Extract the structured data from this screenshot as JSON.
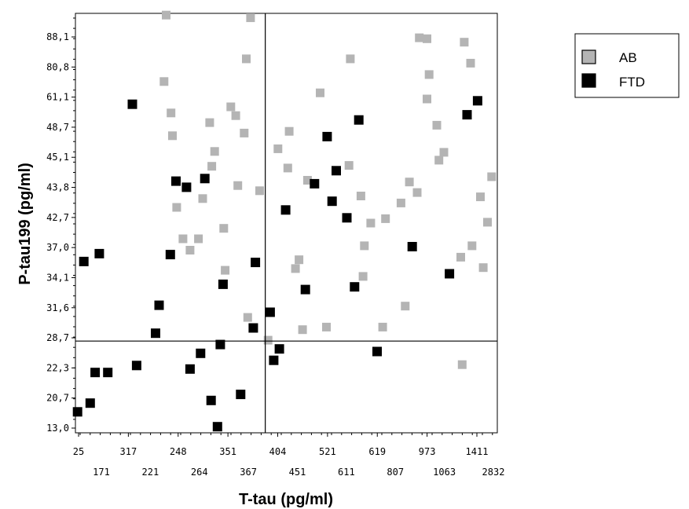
{
  "chart_data": {
    "type": "scatter",
    "xlabel": "T-tau (pg/ml)",
    "ylabel": "P-tau199 (pg/ml)",
    "x_ticks_top": [
      "25",
      "317",
      "248",
      "351",
      "404",
      "521",
      "619",
      "973",
      "1411"
    ],
    "x_ticks_bottom": [
      "171",
      "221",
      "264",
      "367",
      "451",
      "611",
      "807",
      "1063",
      "2832"
    ],
    "y_ticks": [
      "88,1",
      "80,8",
      "61,1",
      "48,7",
      "45,1",
      "43,8",
      "42,7",
      "37,0",
      "34,1",
      "31,6",
      "28,7",
      "22,3",
      "20,7",
      "13,0"
    ],
    "x_cutoff_rank": 27,
    "y_cutoff_rank": 10.5,
    "x_range_rank": [
      0,
      48
    ],
    "y_range_rank": [
      0,
      48
    ],
    "grid": false,
    "legend_position": "top-right",
    "series": [
      {
        "name": "AB",
        "color": "#b4b4b4",
        "points": [
          [
            12.9,
            47.8
          ],
          [
            12.6,
            40.2
          ],
          [
            13.6,
            36.6
          ],
          [
            13.8,
            34
          ],
          [
            14.4,
            25.8
          ],
          [
            15.3,
            22.2
          ],
          [
            16.3,
            20.9
          ],
          [
            17.5,
            22.2
          ],
          [
            18.1,
            26.8
          ],
          [
            19.4,
            30.5
          ],
          [
            19.1,
            35.5
          ],
          [
            19.8,
            32.2
          ],
          [
            21.3,
            18.6
          ],
          [
            21.1,
            23.4
          ],
          [
            22.1,
            37.3
          ],
          [
            22.8,
            36.3
          ],
          [
            23.1,
            28.3
          ],
          [
            24,
            34.3
          ],
          [
            24.5,
            13.2
          ],
          [
            24.9,
            47.5
          ],
          [
            24.3,
            42.8
          ],
          [
            26.2,
            27.7
          ],
          [
            27.4,
            10.6
          ],
          [
            28.8,
            32.5
          ],
          [
            30.4,
            34.5
          ],
          [
            30.2,
            30.3
          ],
          [
            31.8,
            19.8
          ],
          [
            31.3,
            18.8
          ],
          [
            32.3,
            11.8
          ],
          [
            33,
            28.9
          ],
          [
            34.8,
            38.9
          ],
          [
            35.7,
            12.1
          ],
          [
            38.9,
            30.6
          ],
          [
            39.1,
            42.8
          ],
          [
            41.1,
            21.4
          ],
          [
            40.6,
            27.1
          ],
          [
            40.9,
            17.9
          ],
          [
            42,
            24
          ],
          [
            43.7,
            12.1
          ],
          [
            44.1,
            24.5
          ],
          [
            46.3,
            26.3
          ],
          [
            47.5,
            28.7
          ],
          [
            46.9,
            14.5
          ],
          [
            48.6,
            27.5
          ],
          [
            48.9,
            45.2
          ],
          [
            50,
            45.1
          ],
          [
            50.3,
            41
          ],
          [
            50,
            38.2
          ],
          [
            51.7,
            31.2
          ],
          [
            51.4,
            35.2
          ],
          [
            52.4,
            32.1
          ],
          [
            54.8,
            20.1
          ],
          [
            55,
            7.8
          ],
          [
            55.3,
            44.7
          ],
          [
            56.4,
            21.4
          ],
          [
            56.2,
            42.3
          ],
          [
            57.6,
            27
          ],
          [
            58,
            18.9
          ],
          [
            58.6,
            24.1
          ],
          [
            59.2,
            29.3
          ]
        ]
      },
      {
        "name": "FTD",
        "color": "#000000",
        "points": [
          [
            0.3,
            2.4
          ],
          [
            1.2,
            19.6
          ],
          [
            2.1,
            3.4
          ],
          [
            2.8,
            6.9
          ],
          [
            3.4,
            20.5
          ],
          [
            4.6,
            6.9
          ],
          [
            8.1,
            37.6
          ],
          [
            8.7,
            7.7
          ],
          [
            11.4,
            11.4
          ],
          [
            11.9,
            14.6
          ],
          [
            13.5,
            20.4
          ],
          [
            14.3,
            28.8
          ],
          [
            15.8,
            28.1
          ],
          [
            16.3,
            7.3
          ],
          [
            17.8,
            9.1
          ],
          [
            18.4,
            29.1
          ],
          [
            19.3,
            3.7
          ],
          [
            20.2,
            0.7
          ],
          [
            20.6,
            10.1
          ],
          [
            21,
            17
          ],
          [
            23.5,
            4.4
          ],
          [
            25.3,
            12
          ],
          [
            25.6,
            19.5
          ],
          [
            27.7,
            13.8
          ],
          [
            28.2,
            8.3
          ],
          [
            29,
            9.6
          ],
          [
            29.9,
            25.5
          ],
          [
            32.7,
            16.4
          ],
          [
            34,
            28.5
          ],
          [
            35.8,
            33.9
          ],
          [
            36.5,
            26.5
          ],
          [
            37.1,
            30
          ],
          [
            38.6,
            24.6
          ],
          [
            39.7,
            16.7
          ],
          [
            40.3,
            35.8
          ],
          [
            42.9,
            9.3
          ],
          [
            47.9,
            21.3
          ],
          [
            53.2,
            18.2
          ],
          [
            55.7,
            36.4
          ],
          [
            57.2,
            38
          ]
        ]
      }
    ]
  }
}
